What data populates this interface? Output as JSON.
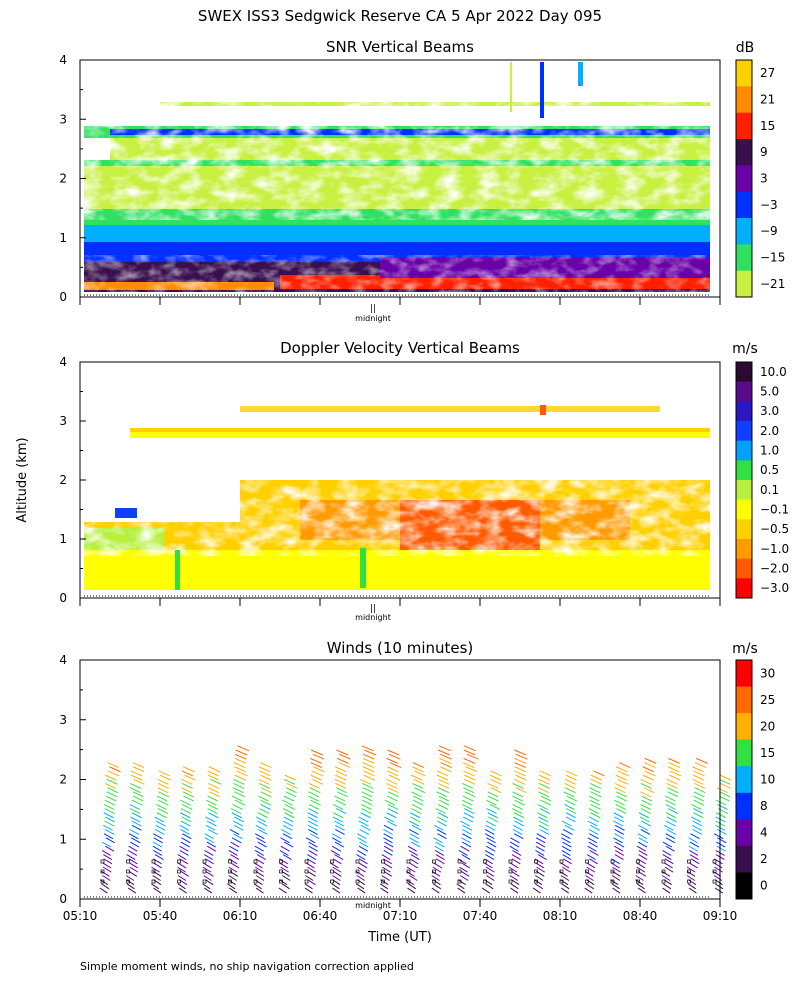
{
  "header": {
    "title": "SWEX ISS3 Sedgwick Reserve CA   5 Apr 2022 Day 095",
    "footnote": "Simple moment winds, no ship navigation correction applied",
    "y_axis_label": "Altitude (km)",
    "x_axis_label": "Time (UT)",
    "midnight_label": "midnight"
  },
  "chart_data": [
    {
      "type": "heatmap",
      "title": "SNR Vertical Beams",
      "unit": "dB",
      "ylim": [
        0,
        4
      ],
      "yticks": [
        "0",
        "1",
        "2",
        "3",
        "4"
      ],
      "colorbar": {
        "labels": [
          "27",
          "21",
          "15",
          "9",
          "3",
          "−3",
          "−9",
          "−15",
          "−21"
        ],
        "colors": [
          "#ffd000",
          "#ff8c00",
          "#ff2000",
          "#3a0f4f",
          "#6a00a8",
          "#0030ff",
          "#00b0ff",
          "#30e060",
          "#c8f040"
        ]
      }
    },
    {
      "type": "heatmap",
      "title": "Doppler Velocity Vertical Beams",
      "unit": "m/s",
      "ylim": [
        0,
        4
      ],
      "yticks": [
        "0",
        "1",
        "2",
        "3",
        "4"
      ],
      "colorbar": {
        "labels": [
          "10.0",
          "5.0",
          "3.0",
          "2.0",
          "1.0",
          "0.5",
          "0.1",
          "−0.1",
          "−0.5",
          "−1.0",
          "−2.0",
          "−3.0"
        ],
        "colors": [
          "#2a0a30",
          "#5a0a8a",
          "#2a18c0",
          "#1040ff",
          "#00a0ff",
          "#30e040",
          "#b8f040",
          "#ffff00",
          "#ffd000",
          "#ff9a00",
          "#ff5a00",
          "#ff0000"
        ]
      }
    },
    {
      "type": "scatter",
      "title": "Winds (10 minutes)",
      "unit": "m/s",
      "ylim": [
        0,
        4
      ],
      "yticks": [
        "0",
        "1",
        "2",
        "3",
        "4"
      ],
      "colorbar": {
        "labels": [
          "30",
          "25",
          "20",
          "15",
          "10",
          "8",
          "4",
          "2",
          "0"
        ],
        "colors": [
          "#ff0000",
          "#ff6a00",
          "#ffb000",
          "#30e040",
          "#00b0ff",
          "#0030ff",
          "#6a00a8",
          "#3a0f4f",
          "#000000"
        ]
      },
      "xticks": [
        "05:10",
        "05:40",
        "06:10",
        "06:40",
        "07:10",
        "07:40",
        "08:10",
        "08:40",
        "09:10"
      ],
      "xlim": [
        "05:10",
        "09:10"
      ]
    }
  ]
}
